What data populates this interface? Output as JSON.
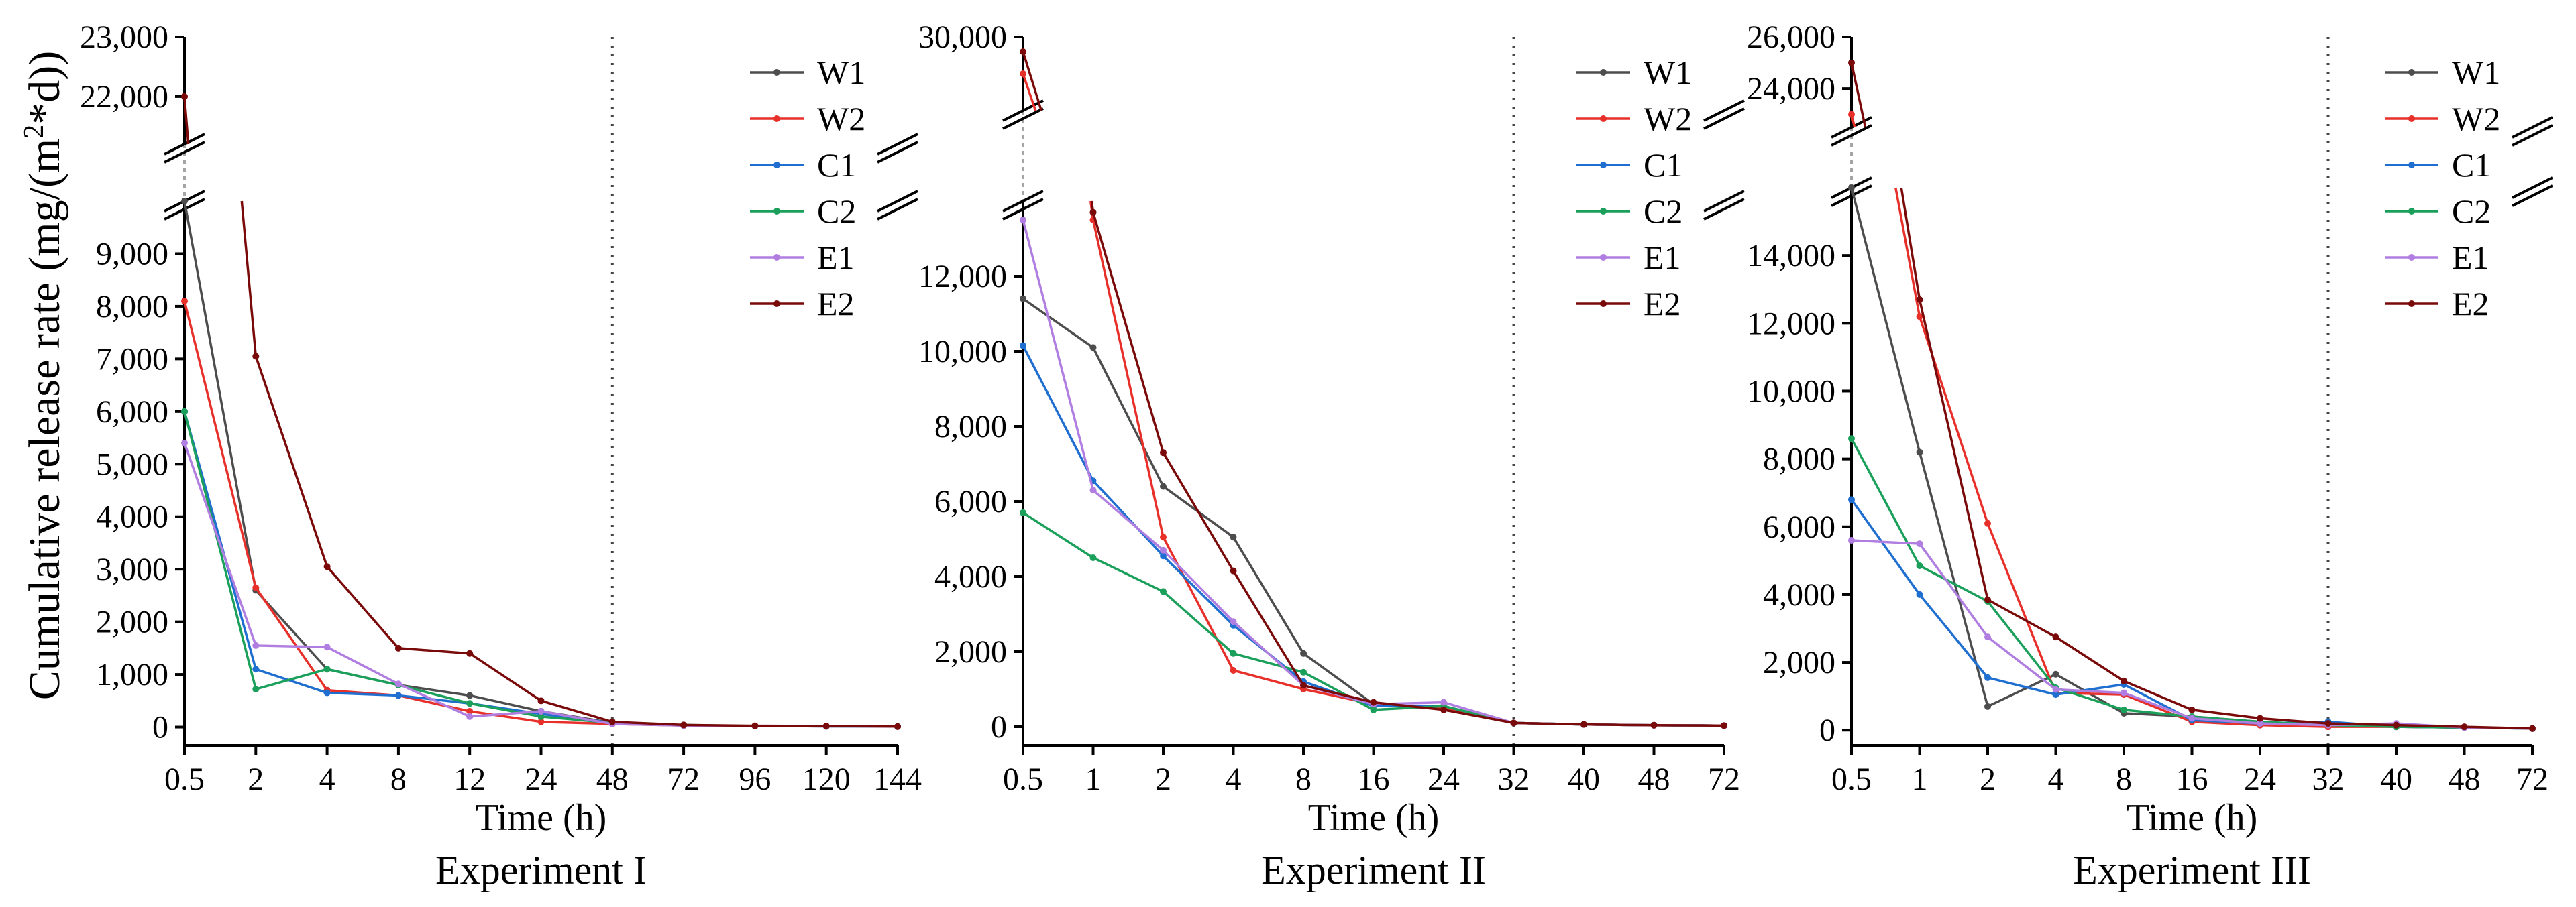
{
  "figure": {
    "ylabel": "Cumulative release rate (mg/(m",
    "ylabel_sup": "2",
    "ylabel_end": "*d))",
    "xlabel": "Time (h)"
  },
  "colors": {
    "W1": "#4d4d4d",
    "W2": "#e8302b",
    "C1": "#1f6fd0",
    "C2": "#1aa05a",
    "E1": "#b07ee0",
    "E2": "#7a0a0a"
  },
  "chart_data": [
    {
      "type": "line",
      "title": "Experiment I",
      "xlabel": "Time (h)",
      "ylabel": "Cumulative release rate (mg/(m2*d))",
      "x": [
        "0.5",
        "2",
        "4",
        "8",
        "12",
        "24",
        "48",
        "72",
        "96",
        "120",
        "144"
      ],
      "lower_ylim": [
        -350,
        10000
      ],
      "upper_ylim": [
        21200,
        23000
      ],
      "lower_ticks": [
        0,
        1000,
        2000,
        3000,
        4000,
        5000,
        6000,
        7000,
        8000,
        9000
      ],
      "lower_tick_labels": [
        "0",
        "1,000",
        "2,000",
        "3,000",
        "4,000",
        "5,000",
        "6,000",
        "7,000",
        "8,000",
        "9,000"
      ],
      "upper_ticks": [
        22000,
        23000
      ],
      "upper_tick_labels": [
        "22,000",
        "23,000"
      ],
      "divider_index": 6,
      "series": [
        {
          "name": "W1",
          "values": [
            10000,
            2600,
            1100,
            800,
            600,
            300,
            80,
            30,
            20,
            15,
            10
          ]
        },
        {
          "name": "W2",
          "values": [
            8100,
            2650,
            700,
            600,
            300,
            100,
            60,
            30,
            20,
            15,
            10
          ]
        },
        {
          "name": "C1",
          "values": [
            6000,
            1100,
            650,
            600,
            450,
            250,
            80,
            30,
            20,
            15,
            10
          ]
        },
        {
          "name": "C2",
          "values": [
            6000,
            720,
            1100,
            800,
            450,
            200,
            80,
            40,
            20,
            15,
            10
          ]
        },
        {
          "name": "E1",
          "values": [
            5400,
            1550,
            1520,
            820,
            200,
            300,
            60,
            30,
            20,
            15,
            10
          ]
        },
        {
          "name": "E2",
          "values": [
            22000,
            7050,
            3050,
            1500,
            1400,
            500,
            100,
            40,
            25,
            20,
            10
          ]
        }
      ]
    },
    {
      "type": "line",
      "title": "Experiment II",
      "xlabel": "Time (h)",
      "ylabel": "",
      "x": [
        "0.5",
        "1",
        "2",
        "4",
        "8",
        "16",
        "24",
        "32",
        "40",
        "48",
        "72"
      ],
      "lower_ylim": [
        -500,
        14000
      ],
      "upper_ylim": [
        25000,
        30000
      ],
      "lower_ticks": [
        0,
        2000,
        4000,
        6000,
        8000,
        10000,
        12000
      ],
      "lower_tick_labels": [
        "0",
        "2,000",
        "4,000",
        "6,000",
        "8,000",
        "10,000",
        "12,000"
      ],
      "upper_ticks": [
        30000
      ],
      "upper_tick_labels": [
        "30,000"
      ],
      "divider_index": 7,
      "series": [
        {
          "name": "W1",
          "values": [
            11400,
            10100,
            6400,
            5050,
            1950,
            600,
            500,
            100,
            60,
            40,
            30
          ]
        },
        {
          "name": "W2",
          "values": [
            27500,
            13500,
            5050,
            1500,
            1000,
            600,
            500,
            100,
            60,
            40,
            30
          ]
        },
        {
          "name": "C1",
          "values": [
            10150,
            6550,
            4550,
            2700,
            1200,
            550,
            550,
            100,
            60,
            40,
            30
          ]
        },
        {
          "name": "C2",
          "values": [
            5700,
            4500,
            3600,
            1950,
            1450,
            450,
            550,
            100,
            60,
            40,
            30
          ]
        },
        {
          "name": "E1",
          "values": [
            13500,
            6300,
            4700,
            2800,
            1100,
            600,
            650,
            100,
            60,
            40,
            30
          ]
        },
        {
          "name": "E2",
          "values": [
            29000,
            13700,
            7300,
            4150,
            1100,
            650,
            450,
            100,
            60,
            40,
            30
          ]
        }
      ]
    },
    {
      "type": "line",
      "title": "Experiment III",
      "xlabel": "Time (h)",
      "ylabel": "",
      "x": [
        "0.5",
        "1",
        "2",
        "4",
        "8",
        "16",
        "24",
        "32",
        "40",
        "48",
        "72"
      ],
      "lower_ylim": [
        -450,
        16000
      ],
      "upper_ylim": [
        22500,
        26000
      ],
      "lower_ticks": [
        0,
        2000,
        4000,
        6000,
        8000,
        10000,
        12000,
        14000
      ],
      "lower_tick_labels": [
        "0",
        "2,000",
        "4,000",
        "6,000",
        "8,000",
        "10,000",
        "12,000",
        "14,000"
      ],
      "upper_ticks": [
        24000,
        26000
      ],
      "upper_tick_labels": [
        "24,000",
        "26,000"
      ],
      "divider_index": 7,
      "series": [
        {
          "name": "W1",
          "values": [
            16000,
            8200,
            700,
            1650,
            500,
            400,
            250,
            150,
            100,
            80,
            50
          ]
        },
        {
          "name": "W2",
          "values": [
            23000,
            12200,
            6100,
            1100,
            1050,
            250,
            150,
            100,
            100,
            80,
            50
          ]
        },
        {
          "name": "C1",
          "values": [
            6800,
            4000,
            1550,
            1050,
            1350,
            300,
            200,
            250,
            100,
            80,
            50
          ]
        },
        {
          "name": "C2",
          "values": [
            8600,
            4850,
            3800,
            1250,
            600,
            400,
            250,
            150,
            100,
            80,
            50
          ]
        },
        {
          "name": "E1",
          "values": [
            5600,
            5500,
            2750,
            1200,
            1100,
            350,
            200,
            150,
            200,
            80,
            50
          ]
        },
        {
          "name": "E2",
          "values": [
            25000,
            12700,
            3850,
            2750,
            1450,
            600,
            350,
            200,
            150,
            100,
            50
          ]
        }
      ]
    }
  ]
}
